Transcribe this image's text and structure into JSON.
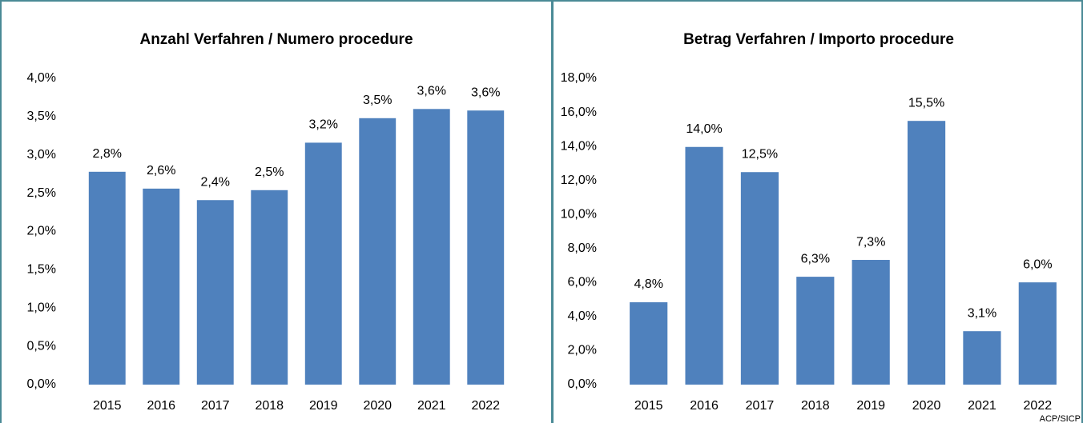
{
  "chart_data": [
    {
      "type": "bar",
      "title": "Anzahl Verfahren / Numero procedure",
      "categories": [
        "2015",
        "2016",
        "2017",
        "2018",
        "2019",
        "2020",
        "2021",
        "2022"
      ],
      "values": [
        2.78,
        2.56,
        2.41,
        2.54,
        3.16,
        3.48,
        3.6,
        3.58
      ],
      "value_labels": [
        "2,8%",
        "2,6%",
        "2,4%",
        "2,5%",
        "3,2%",
        "3,5%",
        "3,6%",
        "3,6%"
      ],
      "color": "#4f81bd",
      "ylim": [
        0,
        4
      ],
      "yticks": [
        {
          "value": 0,
          "label": "0,0%"
        },
        {
          "value": 0.5,
          "label": "0,5%"
        },
        {
          "value": 1,
          "label": "1,0%"
        },
        {
          "value": 1.5,
          "label": "1,5%"
        },
        {
          "value": 2,
          "label": "2,0%"
        },
        {
          "value": 2.5,
          "label": "2,5%"
        },
        {
          "value": 3,
          "label": "3,0%"
        },
        {
          "value": 3.5,
          "label": "3,5%"
        },
        {
          "value": 4,
          "label": "4,0%"
        }
      ],
      "grid": false
    },
    {
      "type": "bar",
      "title": "Betrag Verfahren / Importo procedure",
      "categories": [
        "2015",
        "2016",
        "2017",
        "2018",
        "2019",
        "2020",
        "2021",
        "2022"
      ],
      "values": [
        4.84,
        13.97,
        12.49,
        6.34,
        7.33,
        15.5,
        3.14,
        6.01
      ],
      "value_labels": [
        "4,8%",
        "14,0%",
        "12,5%",
        "6,3%",
        "7,3%",
        "15,5%",
        "3,1%",
        "6,0%"
      ],
      "color": "#4f81bd",
      "ylim": [
        0,
        18
      ],
      "yticks": [
        {
          "value": 0,
          "label": "0,0%"
        },
        {
          "value": 2,
          "label": "2,0%"
        },
        {
          "value": 4,
          "label": "4,0%"
        },
        {
          "value": 6,
          "label": "6,0%"
        },
        {
          "value": 8,
          "label": "8,0%"
        },
        {
          "value": 10,
          "label": "10,0%"
        },
        {
          "value": 12,
          "label": "12,0%"
        },
        {
          "value": 14,
          "label": "14,0%"
        },
        {
          "value": 16,
          "label": "16,0%"
        },
        {
          "value": 18,
          "label": "18,0%"
        }
      ],
      "grid": false,
      "footnote": "ACP/SICP"
    }
  ]
}
